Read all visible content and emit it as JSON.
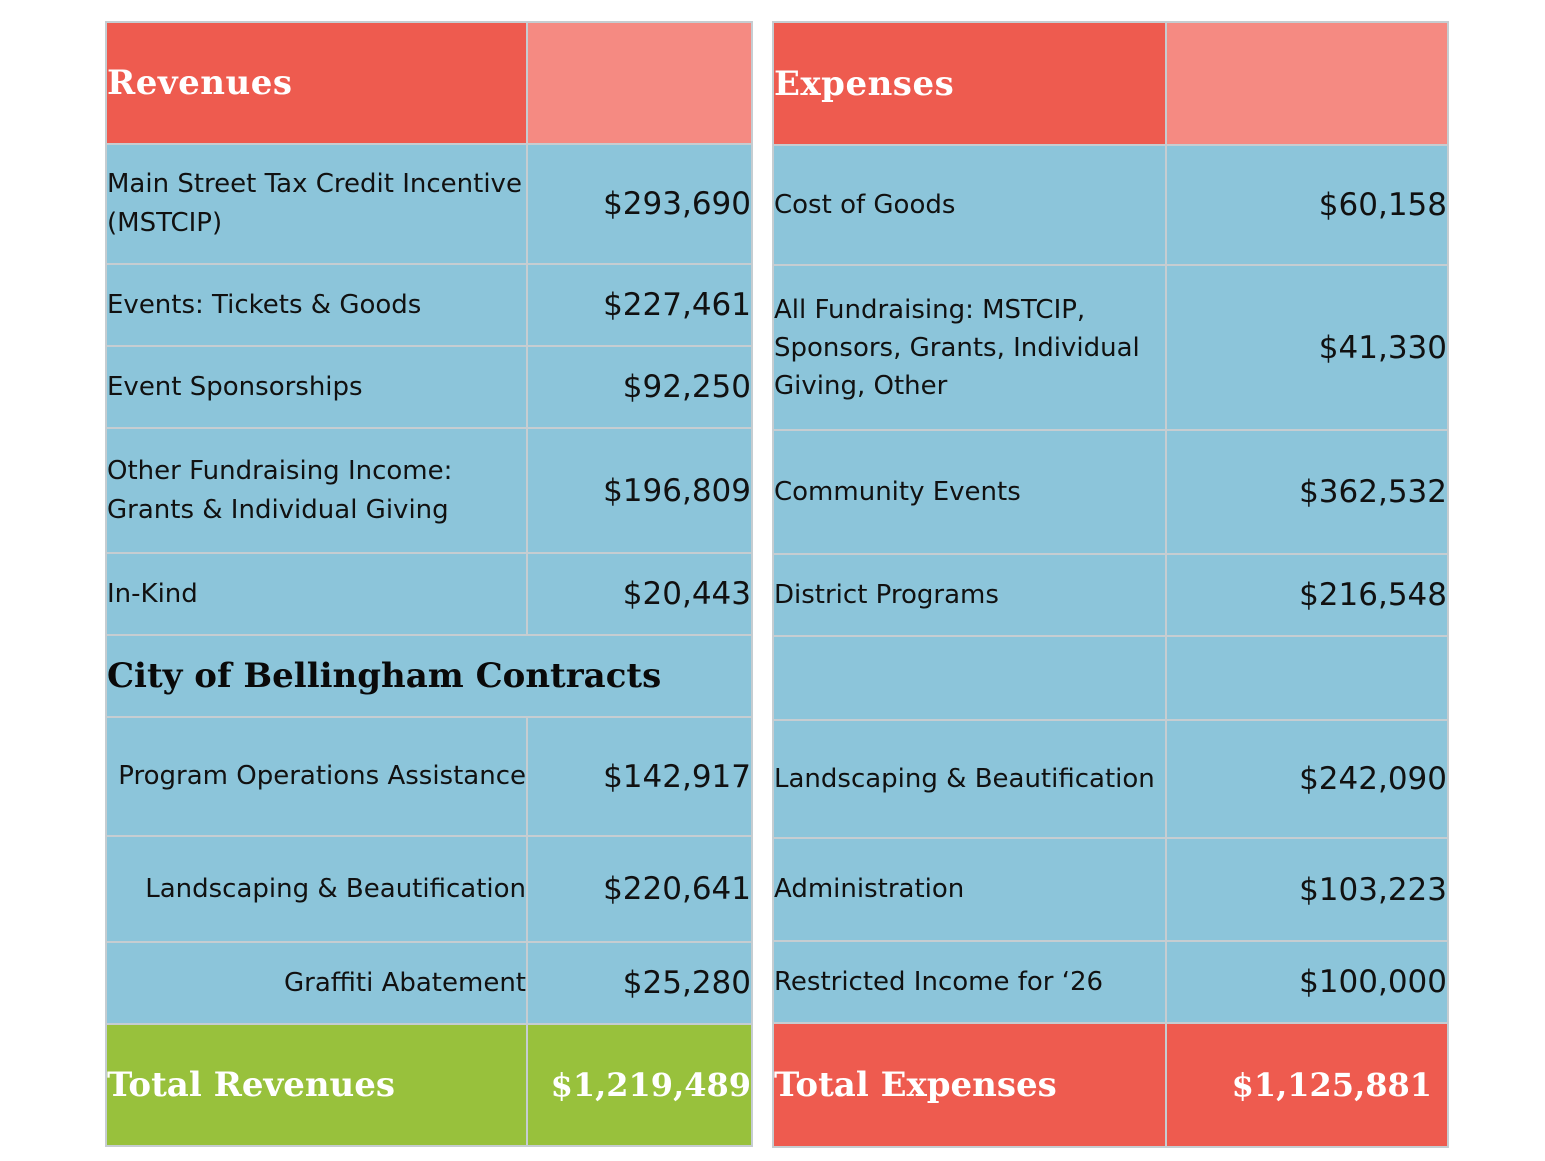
{
  "revenues": {
    "heading": "Revenues",
    "rows": [
      {
        "label": "Main Street Tax Credit Incentive (MSTCIP)",
        "amount": "$293,690"
      },
      {
        "label": "Events: Tickets & Goods",
        "amount": "$227,461"
      },
      {
        "label": "Event Sponsorships",
        "amount": "$92,250"
      },
      {
        "label": "Other Fundraising Income: Grants & Individual Giving",
        "amount": "$196,809"
      },
      {
        "label": "In-Kind",
        "amount": "$20,443"
      }
    ],
    "subheading": "City of Bellingham Contracts",
    "contracts": [
      {
        "label": "Program Operations Assistance",
        "amount": "$142,917"
      },
      {
        "label": "Landscaping & Beautification",
        "amount": "$220,641"
      },
      {
        "label": "Graffiti Abatement",
        "amount": "$25,280"
      }
    ],
    "total_label": "Total Revenues",
    "total_amount": "$1,219,489"
  },
  "expenses": {
    "heading": "Expenses",
    "rows": [
      {
        "label": "Cost of Goods",
        "amount": "$60,158"
      },
      {
        "label": "All Fundraising: MSTCIP, Sponsors, Grants, Individual Giving, Other",
        "amount": "$41,330"
      },
      {
        "label": "Community Events",
        "amount": "$362,532"
      },
      {
        "label": "District Programs",
        "amount": "$216,548"
      },
      {
        "label": "",
        "amount": ""
      },
      {
        "label": "Landscaping & Beautification",
        "amount": "$242,090"
      },
      {
        "label": "Administration",
        "amount": "$103,223"
      },
      {
        "label": "Restricted Income for ‘26",
        "amount": "$100,000"
      }
    ],
    "total_label": "Total Expenses",
    "total_amount": "$1,125,881"
  },
  "colors": {
    "header_red": "#ee5b4f",
    "header_pink": "#f58a82",
    "body_blue": "#8cc5da",
    "total_green": "#98c13c",
    "total_red": "#ee5b4f"
  }
}
